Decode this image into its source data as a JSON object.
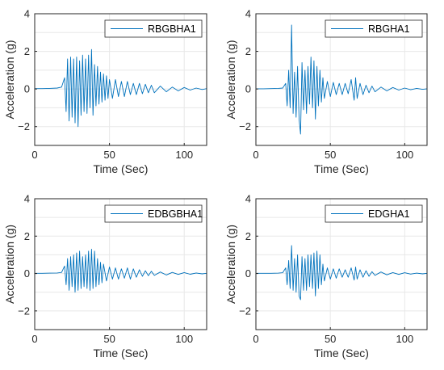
{
  "chart_data": [
    {
      "type": "line",
      "xlabel": "Time (Sec)",
      "ylabel": "Acceleration (g)",
      "xlim": [
        0,
        115
      ],
      "ylim": [
        -3,
        4
      ],
      "xticks": [
        0,
        50,
        100
      ],
      "yticks": [
        -2,
        0,
        2,
        4
      ],
      "grid": true,
      "legend_position": "top-right",
      "series": [
        {
          "name": "RBGBHA1",
          "color": "#0072BD",
          "x": [
            0,
            5,
            10,
            15,
            18,
            20,
            21,
            22,
            23,
            24,
            25,
            26,
            27,
            28,
            29,
            30,
            31,
            32,
            33,
            34,
            35,
            36,
            37,
            38,
            39,
            40,
            41,
            42,
            43,
            44,
            45,
            46,
            47,
            48,
            49,
            50,
            52,
            54,
            56,
            58,
            60,
            62,
            64,
            66,
            68,
            70,
            72,
            74,
            76,
            78,
            80,
            84,
            88,
            92,
            96,
            100,
            104,
            108,
            112,
            115
          ],
          "values": [
            0.02,
            0.02,
            0.03,
            0.05,
            0.1,
            0.6,
            -1.2,
            1.6,
            -1.7,
            1.7,
            -1.5,
            1.6,
            -1.8,
            1.7,
            -2.0,
            1.5,
            -1.4,
            1.8,
            -1.2,
            1.6,
            -1.3,
            1.8,
            -1.0,
            2.1,
            -1.4,
            1.3,
            -0.9,
            1.2,
            -0.8,
            0.9,
            -0.7,
            0.8,
            -0.6,
            0.7,
            -0.5,
            0.5,
            -0.5,
            0.5,
            -0.4,
            0.4,
            -0.4,
            0.4,
            -0.3,
            0.3,
            -0.3,
            0.3,
            -0.25,
            0.25,
            -0.2,
            0.2,
            -0.2,
            0.15,
            -0.15,
            0.1,
            -0.1,
            0.08,
            -0.06,
            0.05,
            -0.03,
            0.02
          ]
        }
      ]
    },
    {
      "type": "line",
      "xlabel": "Time (Sec)",
      "ylabel": "Acceleration (g)",
      "xlim": [
        0,
        115
      ],
      "ylim": [
        -3,
        4
      ],
      "xticks": [
        0,
        50,
        100
      ],
      "yticks": [
        -2,
        0,
        2,
        4
      ],
      "grid": true,
      "legend_position": "top-right",
      "series": [
        {
          "name": "RBGHA1",
          "color": "#0072BD",
          "x": [
            0,
            5,
            10,
            15,
            18,
            20,
            21,
            22,
            23,
            24,
            25,
            26,
            27,
            28,
            29,
            30,
            31,
            32,
            33,
            34,
            35,
            36,
            37,
            38,
            39,
            40,
            41,
            42,
            43,
            44,
            45,
            46,
            48,
            50,
            52,
            54,
            56,
            58,
            60,
            62,
            64,
            66,
            67,
            68,
            70,
            72,
            74,
            76,
            78,
            80,
            84,
            88,
            92,
            96,
            100,
            104,
            108,
            112,
            115
          ],
          "values": [
            0.01,
            0.01,
            0.02,
            0.03,
            0.05,
            0.3,
            -0.9,
            1.0,
            -1.0,
            3.4,
            -1.3,
            0.9,
            -1.5,
            1.2,
            -1.6,
            -2.4,
            1.4,
            -1.1,
            1.0,
            -1.3,
            1.2,
            -0.8,
            1.7,
            -1.0,
            1.5,
            -1.6,
            1.2,
            -0.9,
            1.0,
            -0.7,
            0.6,
            -0.5,
            0.4,
            -0.4,
            0.35,
            -0.3,
            0.3,
            -0.3,
            0.3,
            -0.25,
            0.5,
            -0.6,
            0.6,
            -0.5,
            0.3,
            -0.3,
            0.2,
            -0.2,
            0.15,
            -0.15,
            0.1,
            -0.1,
            0.08,
            -0.06,
            0.05,
            -0.04,
            0.03,
            -0.02,
            0.01
          ]
        }
      ]
    },
    {
      "type": "line",
      "xlabel": "Time (Sec)",
      "ylabel": "Acceleration (g)",
      "xlim": [
        0,
        115
      ],
      "ylim": [
        -3,
        4
      ],
      "xticks": [
        0,
        50,
        100
      ],
      "yticks": [
        -2,
        0,
        2,
        4
      ],
      "grid": true,
      "legend_position": "top-right",
      "series": [
        {
          "name": "EDBGBHA1",
          "color": "#0072BD",
          "x": [
            0,
            5,
            10,
            15,
            18,
            20,
            21,
            22,
            23,
            24,
            25,
            26,
            27,
            28,
            29,
            30,
            31,
            32,
            33,
            34,
            35,
            36,
            37,
            38,
            39,
            40,
            41,
            42,
            43,
            44,
            45,
            46,
            48,
            50,
            52,
            54,
            56,
            58,
            60,
            62,
            64,
            66,
            68,
            70,
            72,
            74,
            76,
            78,
            80,
            84,
            88,
            92,
            96,
            100,
            104,
            108,
            112,
            115
          ],
          "values": [
            0.01,
            0.01,
            0.02,
            0.03,
            0.06,
            0.4,
            -0.6,
            0.8,
            -0.9,
            0.9,
            -0.7,
            1.0,
            -1.0,
            1.1,
            -0.9,
            1.2,
            -0.8,
            0.9,
            -0.7,
            1.0,
            -0.8,
            1.2,
            -0.9,
            1.3,
            -0.8,
            1.2,
            -0.7,
            0.8,
            -0.6,
            0.6,
            -0.5,
            0.5,
            -0.4,
            0.35,
            -0.3,
            0.3,
            -0.3,
            0.25,
            -0.25,
            0.3,
            -0.3,
            0.25,
            -0.2,
            0.2,
            -0.15,
            0.15,
            -0.12,
            0.12,
            -0.1,
            0.08,
            -0.08,
            0.06,
            -0.05,
            0.05,
            -0.04,
            0.03,
            -0.02,
            0.01
          ]
        }
      ]
    },
    {
      "type": "line",
      "xlabel": "Time (Sec)",
      "ylabel": "Acceleration (g)",
      "xlim": [
        0,
        115
      ],
      "ylim": [
        -3,
        4
      ],
      "xticks": [
        0,
        50,
        100
      ],
      "yticks": [
        -2,
        0,
        2,
        4
      ],
      "grid": true,
      "legend_position": "top-right",
      "series": [
        {
          "name": "EDGHA1",
          "color": "#0072BD",
          "x": [
            0,
            5,
            10,
            15,
            18,
            20,
            21,
            22,
            23,
            24,
            25,
            26,
            27,
            28,
            29,
            30,
            31,
            32,
            33,
            34,
            35,
            36,
            37,
            38,
            39,
            40,
            41,
            42,
            43,
            44,
            45,
            46,
            48,
            50,
            52,
            54,
            56,
            58,
            60,
            62,
            64,
            66,
            67,
            68,
            70,
            72,
            74,
            76,
            78,
            80,
            84,
            88,
            92,
            96,
            100,
            104,
            108,
            112,
            115
          ],
          "values": [
            0.01,
            0.01,
            0.01,
            0.02,
            0.04,
            0.3,
            -0.6,
            0.7,
            -0.8,
            1.5,
            -0.9,
            0.8,
            -1.0,
            1.0,
            -1.2,
            -1.4,
            0.9,
            -0.9,
            0.8,
            -0.9,
            1.0,
            -0.7,
            1.0,
            -0.8,
            1.1,
            -1.2,
            1.2,
            -0.8,
            1.0,
            -0.6,
            0.5,
            -0.4,
            0.3,
            -0.3,
            0.25,
            -0.25,
            0.25,
            -0.2,
            0.2,
            -0.2,
            0.3,
            -0.35,
            0.35,
            -0.3,
            0.2,
            -0.2,
            0.15,
            -0.15,
            0.1,
            -0.1,
            0.08,
            -0.07,
            0.05,
            -0.05,
            0.04,
            -0.03,
            0.02,
            -0.02,
            0.01
          ]
        }
      ]
    }
  ]
}
